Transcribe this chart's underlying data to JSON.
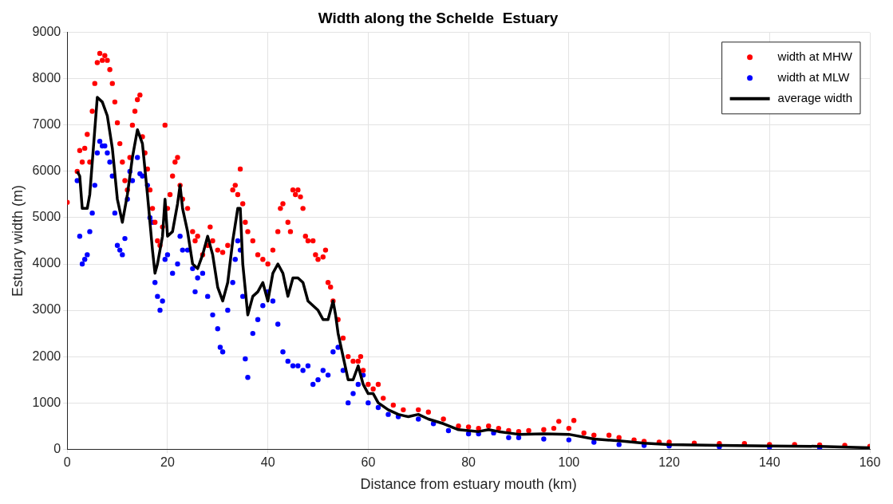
{
  "chart_data": {
    "type": "scatter",
    "title": "Width along the Schelde  Estuary",
    "xlabel": "Distance from estuary mouth (km)",
    "ylabel": "Estuary width (m)",
    "xlim": [
      0,
      160
    ],
    "xticks": [
      0,
      20,
      40,
      60,
      80,
      100,
      120,
      140,
      160
    ],
    "ylim": [
      0,
      9000
    ],
    "yticks": [
      0,
      1000,
      2000,
      3000,
      4000,
      5000,
      6000,
      7000,
      8000,
      9000
    ],
    "grid": true,
    "legend": "top right",
    "series": [
      {
        "name": "width at MHW",
        "type": "scatter",
        "marker": "circle",
        "color": "#ff0000",
        "x": [
          0,
          2,
          2.5,
          3,
          3.5,
          4,
          4.5,
          5,
          5.5,
          6,
          6.5,
          7,
          7.5,
          8,
          8.5,
          9,
          9.5,
          10,
          10.5,
          11,
          11.5,
          12,
          12.5,
          13,
          13.5,
          14,
          14.5,
          15,
          15.5,
          16,
          16.5,
          17,
          17.5,
          18,
          18.5,
          19,
          19.5,
          20,
          20.5,
          21,
          21.5,
          22,
          22.5,
          23,
          24,
          25,
          25.5,
          26,
          27,
          28,
          28.5,
          29,
          30,
          31,
          32,
          33,
          33.5,
          34,
          34.5,
          35,
          35.5,
          36,
          37,
          38,
          39,
          40,
          41,
          42,
          42.5,
          43,
          44,
          44.5,
          45,
          45.5,
          46,
          46.5,
          47,
          47.5,
          48,
          49,
          49.5,
          50,
          51,
          51.5,
          52,
          52.5,
          53,
          54,
          55,
          56,
          57,
          58,
          58.5,
          59,
          60,
          61,
          62,
          63,
          65,
          67,
          70,
          72,
          75,
          78,
          80,
          82,
          84,
          86,
          88,
          90,
          92,
          95,
          97,
          98,
          100,
          101,
          103,
          105,
          108,
          110,
          113,
          115,
          118,
          120,
          125,
          130,
          135,
          140,
          145,
          150,
          155,
          160
        ],
        "values": [
          5330,
          6000,
          6450,
          6200,
          6500,
          6800,
          6200,
          7300,
          7900,
          8350,
          8550,
          8400,
          8500,
          8400,
          8200,
          7900,
          7500,
          7050,
          6600,
          6200,
          5800,
          5600,
          6300,
          7000,
          7300,
          7550,
          7650,
          6750,
          6400,
          6050,
          5600,
          5200,
          4900,
          4500,
          4400,
          4800,
          7000,
          5200,
          5500,
          5900,
          6200,
          6300,
          5700,
          5400,
          5200,
          4700,
          4500,
          4600,
          4200,
          4400,
          4800,
          4500,
          4300,
          4250,
          4400,
          5600,
          5700,
          5500,
          6050,
          5300,
          4900,
          4700,
          4500,
          4200,
          4100,
          4000,
          4300,
          4700,
          5200,
          5300,
          4900,
          4700,
          5600,
          5500,
          5600,
          5450,
          5200,
          4600,
          4500,
          4500,
          4200,
          4100,
          4150,
          4300,
          3600,
          3500,
          3200,
          2800,
          2400,
          2000,
          1900,
          1900,
          2000,
          1700,
          1400,
          1300,
          1400,
          1100,
          950,
          850,
          850,
          800,
          650,
          500,
          480,
          450,
          500,
          450,
          400,
          380,
          400,
          420,
          450,
          600,
          450,
          620,
          350,
          300,
          300,
          250,
          200,
          170,
          150,
          150,
          130,
          120,
          120,
          100,
          100,
          90,
          80,
          60
        ]
      },
      {
        "name": "width at MLW",
        "type": "scatter",
        "marker": "circle",
        "color": "#0000ff",
        "x": [
          2,
          2.5,
          3,
          3.5,
          4,
          4.5,
          5,
          5.5,
          6,
          6.5,
          7,
          7.5,
          8,
          8.5,
          9,
          9.5,
          10,
          10.5,
          11,
          11.5,
          12,
          12.5,
          13,
          14,
          14.5,
          15,
          16,
          16.5,
          17,
          17.5,
          18,
          18.5,
          19,
          19.5,
          20,
          21,
          22,
          22.5,
          23,
          24,
          25,
          25.5,
          26,
          27,
          28,
          29,
          30,
          30.5,
          31,
          32,
          33,
          33.5,
          34,
          34.5,
          35,
          35.5,
          36,
          37,
          38,
          39,
          40,
          41,
          42,
          43,
          44,
          45,
          46,
          47,
          48,
          49,
          50,
          51,
          52,
          53,
          54,
          55,
          56,
          57,
          58,
          59,
          60,
          62,
          64,
          66,
          70,
          73,
          76,
          80,
          82,
          85,
          88,
          90,
          95,
          100,
          105,
          110,
          115,
          120,
          130,
          140,
          150
        ],
        "values": [
          5800,
          4600,
          4000,
          4100,
          4200,
          4700,
          5100,
          5700,
          6400,
          6650,
          6550,
          6550,
          6400,
          6200,
          5900,
          5100,
          4400,
          4300,
          4200,
          4550,
          5400,
          6000,
          5800,
          6300,
          5950,
          5900,
          5700,
          5000,
          4900,
          3600,
          3300,
          3000,
          3200,
          4100,
          4200,
          3800,
          4000,
          4600,
          4300,
          4300,
          3900,
          3400,
          3700,
          3800,
          3300,
          2900,
          2600,
          2200,
          2100,
          3000,
          3600,
          4100,
          4500,
          4300,
          3300,
          1950,
          1550,
          2500,
          2800,
          3100,
          3400,
          3200,
          2700,
          2100,
          1900,
          1800,
          1800,
          1700,
          1800,
          1400,
          1500,
          1700,
          1600,
          2100,
          2200,
          1700,
          1000,
          1200,
          1400,
          1600,
          1000,
          900,
          750,
          700,
          650,
          550,
          400,
          330,
          330,
          350,
          250,
          250,
          220,
          200,
          150,
          100,
          80,
          70,
          50,
          40,
          30
        ]
      },
      {
        "name": "average width",
        "type": "line",
        "marker": "none",
        "line_style": "solid",
        "color": "#000000",
        "x": [
          2,
          2.5,
          3,
          4,
          4.5,
          5,
          6,
          7,
          8,
          9,
          10,
          11,
          12,
          13,
          14,
          15,
          16,
          17,
          17.5,
          18,
          19,
          19.5,
          20,
          21,
          22,
          22.5,
          23,
          24,
          25,
          26,
          27,
          28,
          29,
          30,
          31,
          32,
          33,
          34,
          34.5,
          35,
          36,
          37,
          38,
          39,
          40,
          41,
          42,
          43,
          44,
          45,
          46,
          47,
          48,
          49,
          50,
          51,
          52,
          53,
          53.5,
          54,
          55,
          56,
          57,
          58,
          59,
          60,
          61,
          62,
          64,
          66,
          68,
          70,
          72,
          75,
          78,
          80,
          82,
          84,
          86,
          90,
          95,
          100,
          105,
          110,
          115,
          120,
          130,
          140,
          150,
          160
        ],
        "values": [
          6000,
          5900,
          5200,
          5200,
          5500,
          6200,
          7600,
          7500,
          7200,
          6500,
          5400,
          4900,
          5500,
          6300,
          6900,
          6600,
          5500,
          4300,
          3800,
          4000,
          4600,
          5400,
          4600,
          4700,
          5300,
          5700,
          5200,
          4700,
          4000,
          3900,
          4200,
          4600,
          4200,
          3500,
          3200,
          3600,
          4500,
          5200,
          5200,
          4000,
          2900,
          3300,
          3400,
          3600,
          3200,
          3800,
          4000,
          3800,
          3300,
          3700,
          3700,
          3600,
          3200,
          3100,
          3000,
          2800,
          2800,
          3200,
          2900,
          2500,
          2000,
          1500,
          1500,
          1800,
          1400,
          1200,
          1200,
          1000,
          850,
          750,
          700,
          750,
          650,
          550,
          420,
          400,
          380,
          420,
          380,
          320,
          330,
          320,
          220,
          180,
          130,
          100,
          80,
          70,
          60,
          30
        ]
      }
    ]
  }
}
